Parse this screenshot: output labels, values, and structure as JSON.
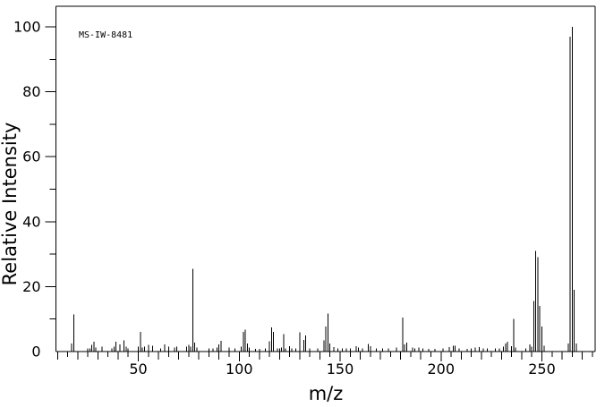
{
  "chart_data": {
    "type": "bar",
    "subtype": "mass-spectrum-stick-plot",
    "annotation": "MS-IW-8481",
    "xlabel": "m/z",
    "ylabel": "Relative Intensity",
    "xlim": [
      9,
      276
    ],
    "ylim": [
      0,
      100
    ],
    "x_tick_labels": [
      "50",
      "100",
      "150",
      "200",
      "250"
    ],
    "x_tick_label_values": [
      50,
      100,
      150,
      200,
      250
    ],
    "x_tick_minor_step": 5,
    "x_tick_medium_step": 10,
    "y_tick_labels": [
      "0",
      "20",
      "40",
      "60",
      "80",
      "100"
    ],
    "y_tick_label_values": [
      0,
      20,
      40,
      60,
      80,
      100
    ],
    "y_tick_minor_step": 10,
    "grid": false,
    "legend": false,
    "colors": {
      "line": "#000000",
      "background": "#ffffff",
      "text": "#000000"
    },
    "peaks_format": "[mz, relative_intensity]",
    "peaks": [
      [
        17,
        2.5
      ],
      [
        18,
        11.5
      ],
      [
        25,
        1
      ],
      [
        26,
        1
      ],
      [
        27,
        2
      ],
      [
        28,
        3
      ],
      [
        29,
        1.2
      ],
      [
        32,
        1.5
      ],
      [
        37,
        1
      ],
      [
        38,
        1.5
      ],
      [
        39,
        3
      ],
      [
        41,
        2.2
      ],
      [
        43,
        3.5
      ],
      [
        44,
        1.5
      ],
      [
        45,
        1
      ],
      [
        50,
        1.5
      ],
      [
        51,
        6
      ],
      [
        52,
        1.2
      ],
      [
        53,
        1.5
      ],
      [
        55,
        2
      ],
      [
        57,
        1.8
      ],
      [
        61,
        1
      ],
      [
        63,
        2.2
      ],
      [
        65,
        1.5
      ],
      [
        68,
        1.2
      ],
      [
        69,
        1.5
      ],
      [
        74,
        1.5
      ],
      [
        75,
        2
      ],
      [
        76,
        1.5
      ],
      [
        77,
        25.5
      ],
      [
        78,
        2.7
      ],
      [
        79,
        1.2
      ],
      [
        85,
        1
      ],
      [
        87,
        1
      ],
      [
        89,
        1.2
      ],
      [
        90,
        2.2
      ],
      [
        91,
        3.3
      ],
      [
        95,
        1.2
      ],
      [
        98,
        1
      ],
      [
        101,
        1.5
      ],
      [
        102,
        6
      ],
      [
        103,
        6.8
      ],
      [
        104,
        2.5
      ],
      [
        105,
        1.3
      ],
      [
        108,
        0.8
      ],
      [
        110,
        0.8
      ],
      [
        113,
        1
      ],
      [
        115,
        3.1
      ],
      [
        116,
        7.4
      ],
      [
        117,
        6.1
      ],
      [
        119,
        1
      ],
      [
        120,
        1
      ],
      [
        121,
        1.2
      ],
      [
        122,
        5.4
      ],
      [
        123,
        1
      ],
      [
        125,
        1.7
      ],
      [
        126,
        1
      ],
      [
        128,
        1
      ],
      [
        130,
        5.9
      ],
      [
        132,
        3.6
      ],
      [
        133,
        5
      ],
      [
        135,
        1
      ],
      [
        139,
        1
      ],
      [
        142,
        3.4
      ],
      [
        143,
        7.7
      ],
      [
        144,
        11.7
      ],
      [
        145,
        2.5
      ],
      [
        147,
        1.4
      ],
      [
        149,
        1
      ],
      [
        151,
        1
      ],
      [
        153,
        1
      ],
      [
        155,
        1
      ],
      [
        158,
        1.7
      ],
      [
        159,
        1.2
      ],
      [
        161,
        1
      ],
      [
        164,
        2.4
      ],
      [
        165,
        1.7
      ],
      [
        168,
        1
      ],
      [
        171,
        1
      ],
      [
        174,
        1
      ],
      [
        178,
        1.3
      ],
      [
        181,
        10.5
      ],
      [
        182,
        2.2
      ],
      [
        183,
        2.8
      ],
      [
        186,
        1.2
      ],
      [
        187,
        1
      ],
      [
        189,
        1.2
      ],
      [
        191,
        1
      ],
      [
        194,
        0.8
      ],
      [
        197,
        0.8
      ],
      [
        201,
        1
      ],
      [
        204,
        1.4
      ],
      [
        206,
        1.8
      ],
      [
        207,
        1.8
      ],
      [
        209,
        1
      ],
      [
        213,
        0.8
      ],
      [
        215,
        1
      ],
      [
        217,
        1.2
      ],
      [
        219,
        1.4
      ],
      [
        221,
        1
      ],
      [
        223,
        1
      ],
      [
        227,
        1
      ],
      [
        229,
        1
      ],
      [
        231,
        1.5
      ],
      [
        232,
        2.5
      ],
      [
        233,
        3
      ],
      [
        235,
        1.6
      ],
      [
        236,
        10
      ],
      [
        237,
        1.2
      ],
      [
        242,
        1
      ],
      [
        244,
        2.2
      ],
      [
        245,
        1.5
      ],
      [
        246,
        15.5
      ],
      [
        247,
        31
      ],
      [
        248,
        29
      ],
      [
        249,
        14
      ],
      [
        250,
        7.7
      ],
      [
        251,
        1.8
      ],
      [
        263,
        2.5
      ],
      [
        264,
        97
      ],
      [
        265,
        100
      ],
      [
        266,
        19
      ],
      [
        267,
        2.5
      ]
    ]
  }
}
